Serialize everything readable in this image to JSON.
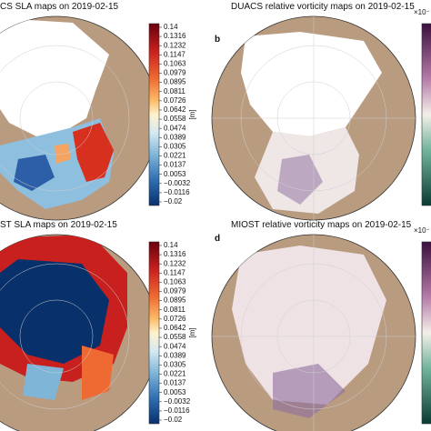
{
  "panels": [
    {
      "title": "CS SLA maps on 2019-02-15",
      "colorbar_label": "[m]",
      "colorbar_ticks": [
        "0.14",
        "0.1316",
        "0.1232",
        "0.1147",
        "0.1063",
        "0.0979",
        "0.0895",
        "0.0811",
        "0.0726",
        "0.0642",
        "0.0558",
        "0.0474",
        "0.0389",
        "0.0305",
        "0.0221",
        "0.0137",
        "0.0053",
        "−0.0032",
        "−0.0116",
        "−0.02"
      ]
    },
    {
      "title": "DUACS relative vorticity maps on 2019-02-15",
      "letter": "b",
      "colorbar_label": "×10⁻"
    },
    {
      "title": "ST SLA maps on 2019-02-15",
      "colorbar_label": "[m]",
      "colorbar_ticks": [
        "0.14",
        "0.1316",
        "0.1232",
        "0.1147",
        "0.1063",
        "0.0979",
        "0.0895",
        "0.0811",
        "0.0726",
        "0.0642",
        "0.0558",
        "0.0474",
        "0.0389",
        "0.0305",
        "0.0221",
        "0.0137",
        "0.0053",
        "−0.0032",
        "−0.0116",
        "−0.02"
      ]
    },
    {
      "title": "MIOST relative vorticity maps on 2019-02-15",
      "letter": "d",
      "colorbar_label": "×10⁻"
    }
  ]
}
